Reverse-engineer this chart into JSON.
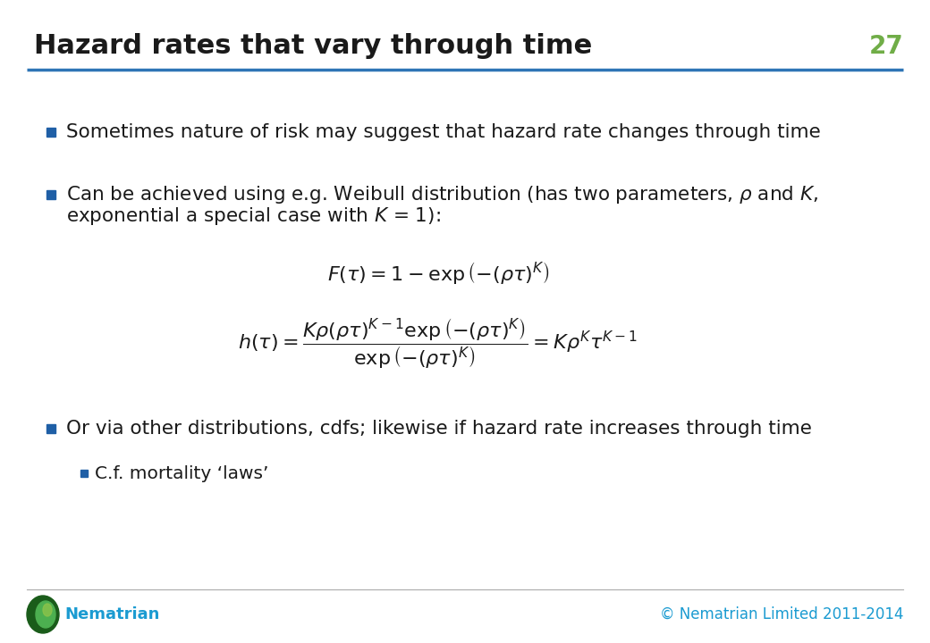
{
  "title": "Hazard rates that vary through time",
  "slide_number": "27",
  "title_color": "#1a1a1a",
  "title_fontsize": 22,
  "slide_number_color": "#70AD47",
  "slide_number_fontsize": 20,
  "header_line_color": "#2E75B6",
  "background_color": "#FFFFFF",
  "bullet_square_color": "#1F5FA6",
  "sub_bullet_color": "#1F5FA6",
  "text_color": "#1a1a1a",
  "text_fontsize": 15.5,
  "footer_text_left": "Nematrian",
  "footer_text_right": "© Nematrian Limited 2011-2014",
  "footer_color": "#1B9BD1",
  "bullet1": "Sometimes nature of risk may suggest that hazard rate changes through time",
  "bullet2_line1": "Can be achieved using e.g. Weibull distribution (has two parameters, $\\rho$ and $K$,",
  "bullet2_line2": "exponential a special case with $K$ = 1):",
  "formula1": "$F\\left(\\tau\\right)=1-\\exp\\left(-\\left(\\rho\\tau\\right)^{K}\\right)$",
  "formula2": "$h\\left(\\tau\\right)=\\dfrac{K\\rho\\left(\\rho\\tau\\right)^{K-1}\\exp\\left(-\\left(\\rho\\tau\\right)^{K}\\right)}{\\exp\\left(-\\left(\\rho\\tau\\right)^{K}\\right)}=K\\rho^{K}\\tau^{K-1}$",
  "bullet3": "Or via other distributions, cdfs; likewise if hazard rate increases through time",
  "subbullet": "C.f. mortality ‘laws’"
}
